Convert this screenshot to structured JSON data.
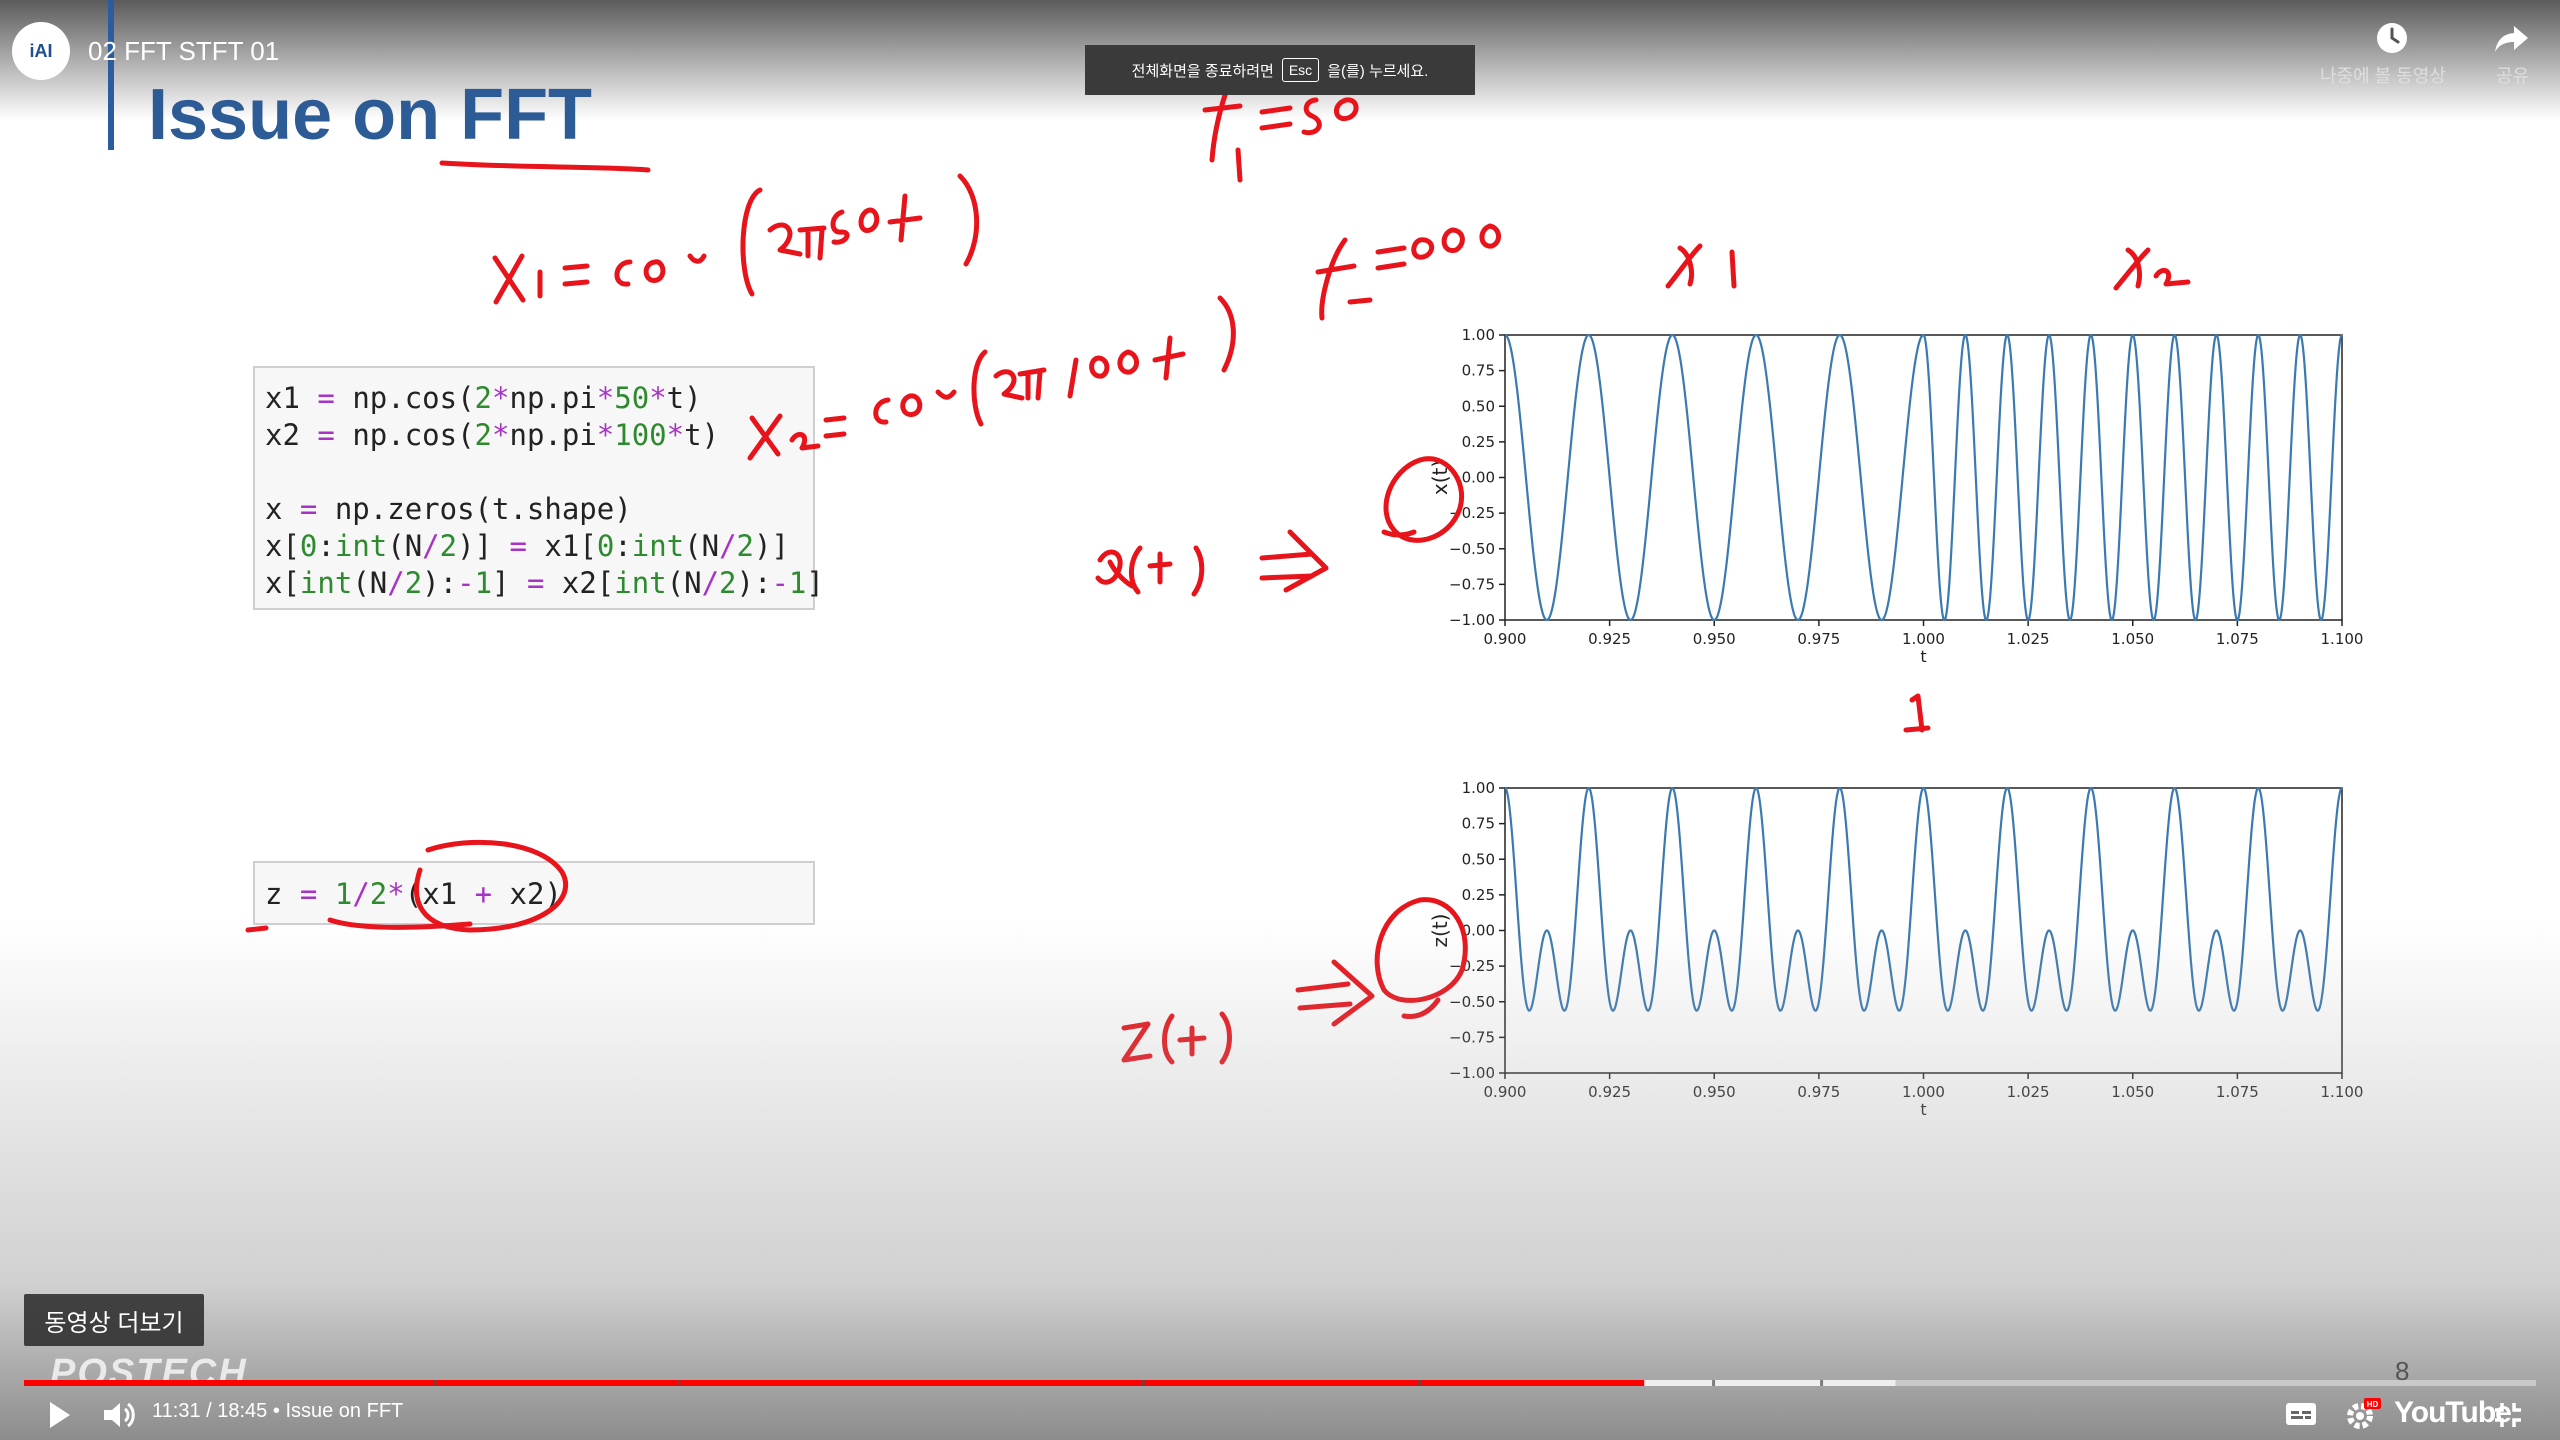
{
  "player": {
    "channel_avatar_text": "iAI",
    "video_title": "02 FFT STFT 01",
    "esc_toast": {
      "before": "전체화면을 종료하려면",
      "key": "Esc",
      "after": "을(를) 누르세요."
    },
    "watch_later_label": "나중에 볼 동영상",
    "share_label": "공유",
    "more_videos": "동영상 더보기",
    "watermark": "POSTECH",
    "slide_number": "8",
    "time_current": "11:31",
    "time_total": "18:45",
    "time_separator": " / ",
    "chapter_separator": " • ",
    "chapter": "Issue on FFT",
    "progress": 0.645,
    "buffered": 0.745,
    "youtube_label": "YouTube",
    "colors": {
      "progress": "#ff0000",
      "slide_title": "#2c5b96",
      "ink": "#e8141c",
      "plot_line": "#3b7ab0"
    },
    "icons": [
      "play-icon",
      "volume-icon",
      "subtitles-icon",
      "settings-icon",
      "fullscreen-exit-icon",
      "watch-later-icon",
      "share-icon"
    ]
  },
  "slide": {
    "title": "Issue on FFT",
    "code_block_1": [
      [
        [
          "x1 ",
          ""
        ],
        [
          "=",
          "op"
        ],
        [
          " np.cos(",
          ""
        ],
        [
          "2",
          "num"
        ],
        [
          "*",
          "op"
        ],
        [
          "np.pi",
          ""
        ],
        [
          "*",
          "op"
        ],
        [
          "50",
          "num"
        ],
        [
          "*",
          "op"
        ],
        [
          "t)",
          ""
        ]
      ],
      [
        [
          "x2 ",
          ""
        ],
        [
          "=",
          "op"
        ],
        [
          " np.cos(",
          ""
        ],
        [
          "2",
          "num"
        ],
        [
          "*",
          "op"
        ],
        [
          "np.pi",
          ""
        ],
        [
          "*",
          "op"
        ],
        [
          "100",
          "num"
        ],
        [
          "*",
          "op"
        ],
        [
          "t)",
          ""
        ]
      ],
      [],
      [
        [
          "x ",
          ""
        ],
        [
          "=",
          "op"
        ],
        [
          " np.zeros(t.shape)",
          ""
        ]
      ],
      [
        [
          "x[",
          ""
        ],
        [
          "0",
          "num"
        ],
        [
          ":",
          ""
        ],
        [
          "int",
          "num"
        ],
        [
          "(N",
          ""
        ],
        [
          "/",
          "op"
        ],
        [
          "2",
          "num"
        ],
        [
          ")] ",
          ""
        ],
        [
          "=",
          "op"
        ],
        [
          " x1[",
          ""
        ],
        [
          "0",
          "num"
        ],
        [
          ":",
          ""
        ],
        [
          "int",
          "num"
        ],
        [
          "(N",
          ""
        ],
        [
          "/",
          "op"
        ],
        [
          "2",
          "num"
        ],
        [
          ")]",
          ""
        ]
      ],
      [
        [
          "x[",
          ""
        ],
        [
          "int",
          "num"
        ],
        [
          "(N",
          ""
        ],
        [
          "/",
          "op"
        ],
        [
          "2",
          "num"
        ],
        [
          "):",
          ""
        ],
        [
          "-",
          "op"
        ],
        [
          "1",
          "num"
        ],
        [
          "] ",
          ""
        ],
        [
          "=",
          "op"
        ],
        [
          " x2[",
          ""
        ],
        [
          "int",
          "num"
        ],
        [
          "(N",
          ""
        ],
        [
          "/",
          "op"
        ],
        [
          "2",
          "num"
        ],
        [
          "):",
          ""
        ],
        [
          "-",
          "op"
        ],
        [
          "1",
          "num"
        ],
        [
          "]",
          ""
        ]
      ]
    ],
    "code_block_2": [
      [
        [
          "z ",
          ""
        ],
        [
          "=",
          "op"
        ],
        [
          " ",
          ""
        ],
        [
          "1",
          "num"
        ],
        [
          "/",
          "op"
        ],
        [
          "2",
          "num"
        ],
        [
          "*",
          "op"
        ],
        [
          "(x1 ",
          ""
        ],
        [
          "+",
          "op"
        ],
        [
          " x2)",
          ""
        ]
      ]
    ]
  },
  "chart_data": [
    {
      "type": "line",
      "ylabel": "x(t)",
      "xlabel": "t",
      "xlim": [
        0.9,
        1.1
      ],
      "ylim": [
        -1.0,
        1.0
      ],
      "xticks": [
        "0.900",
        "0.925",
        "0.950",
        "0.975",
        "1.000",
        "1.025",
        "1.050",
        "1.075",
        "1.100"
      ],
      "yticks": [
        "1.00",
        "0.75",
        "0.50",
        "0.25",
        "0.00",
        "−0.25",
        "−0.50",
        "−0.75",
        "−1.00"
      ],
      "series": [
        {
          "function": "cos(2π·50·t) for t < 1.0; cos(2π·100·t) for t ≥ 1.0",
          "segments": [
            {
              "x_range": [
                0.9,
                1.0
              ],
              "freq_hz": 50
            },
            {
              "x_range": [
                1.0,
                1.1
              ],
              "freq_hz": 100
            }
          ]
        }
      ]
    },
    {
      "type": "line",
      "ylabel": "z(t)",
      "xlabel": "t",
      "xlim": [
        0.9,
        1.1
      ],
      "ylim": [
        -1.0,
        1.0
      ],
      "xticks": [
        "0.900",
        "0.925",
        "0.950",
        "0.975",
        "1.000",
        "1.025",
        "1.050",
        "1.075",
        "1.100"
      ],
      "yticks": [
        "1.00",
        "0.75",
        "0.50",
        "0.25",
        "0.00",
        "−0.25",
        "−0.50",
        "−0.75",
        "−1.00"
      ],
      "series": [
        {
          "function": "0.5·(cos(2π·50·t) + cos(2π·100·t))",
          "components_hz": [
            50,
            100
          ],
          "weight": 0.5
        }
      ]
    }
  ]
}
